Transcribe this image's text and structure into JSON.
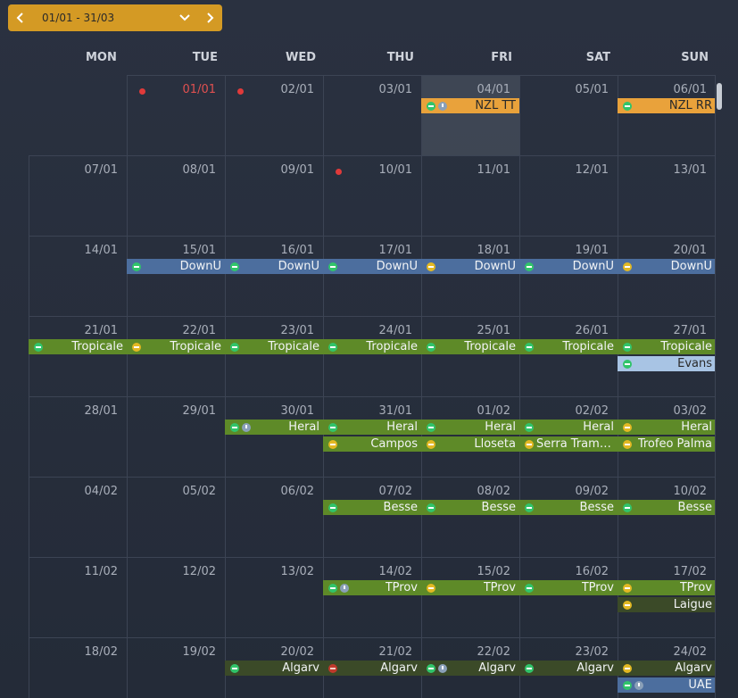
{
  "range": {
    "label": "01/01 - 31/03",
    "prev_icon": "chevron-left-icon",
    "next_icon": "chevron-right-icon",
    "dropdown_icon": "chevron-down-icon"
  },
  "weekdays": [
    "MON",
    "TUE",
    "WED",
    "THU",
    "FRI",
    "SAT",
    "SUN"
  ],
  "colors": {
    "orange": "#e9a23b",
    "blue": "#4c6e9e",
    "green": "#5e8a28",
    "lightblue": "#a8c4e4",
    "holiday": "#e05050"
  },
  "weeks": [
    [
      "",
      "01/01",
      "02/01",
      "03/01",
      "04/01",
      "05/01",
      "06/01"
    ],
    [
      "07/01",
      "08/01",
      "09/01",
      "10/01",
      "11/01",
      "12/01",
      "13/01"
    ],
    [
      "14/01",
      "15/01",
      "16/01",
      "17/01",
      "18/01",
      "19/01",
      "20/01"
    ],
    [
      "21/01",
      "22/01",
      "23/01",
      "24/01",
      "25/01",
      "26/01",
      "27/01"
    ],
    [
      "28/01",
      "29/01",
      "30/01",
      "31/01",
      "01/02",
      "02/02",
      "03/02"
    ],
    [
      "04/02",
      "05/02",
      "06/02",
      "07/02",
      "08/02",
      "09/02",
      "10/02"
    ],
    [
      "11/02",
      "12/02",
      "13/02",
      "14/02",
      "15/02",
      "16/02",
      "17/02"
    ],
    [
      "18/02",
      "19/02",
      "20/02",
      "21/02",
      "22/02",
      "23/02",
      "24/02"
    ]
  ],
  "events": [
    {
      "title": "NZL TT"
    },
    {
      "title": "NZL RR"
    },
    {
      "title": "DownU"
    },
    {
      "title": "DownU"
    },
    {
      "title": "DownU"
    },
    {
      "title": "DownU"
    },
    {
      "title": "DownU"
    },
    {
      "title": "DownU"
    },
    {
      "title": "Tropicale"
    },
    {
      "title": "Tropicale"
    },
    {
      "title": "Tropicale"
    },
    {
      "title": "Tropicale"
    },
    {
      "title": "Tropicale"
    },
    {
      "title": "Tropicale"
    },
    {
      "title": "Tropicale"
    },
    {
      "title": "Evans"
    },
    {
      "title": "Heral"
    },
    {
      "title": "Heral"
    },
    {
      "title": "Heral"
    },
    {
      "title": "Heral"
    },
    {
      "title": "Heral"
    },
    {
      "title": "Campos"
    },
    {
      "title": "Lloseta"
    },
    {
      "title": "Serra Tramunt..."
    },
    {
      "title": "Trofeo Palma"
    },
    {
      "title": "Besse"
    },
    {
      "title": "Besse"
    },
    {
      "title": "Besse"
    },
    {
      "title": "Besse"
    },
    {
      "title": "TProv"
    },
    {
      "title": "TProv"
    },
    {
      "title": "TProv"
    },
    {
      "title": "TProv"
    },
    {
      "title": "Laigue"
    },
    {
      "title": "Algarv"
    },
    {
      "title": "Algarv"
    },
    {
      "title": "Algarv"
    },
    {
      "title": "Algarv"
    },
    {
      "title": "Algarv"
    },
    {
      "title": "UAE"
    }
  ]
}
